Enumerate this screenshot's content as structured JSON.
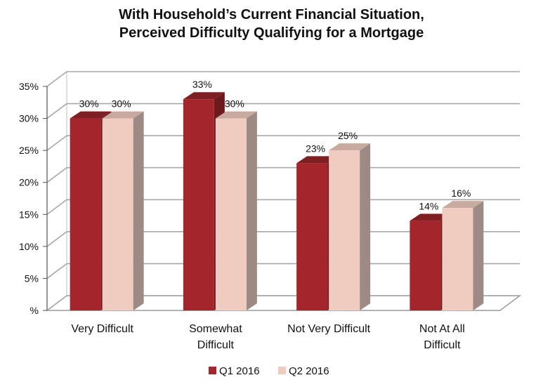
{
  "chart_data": {
    "type": "bar",
    "title_lines": [
      "With Household’s Current Financial Situation,",
      "Perceived Difficulty Qualifying for a Mortgage"
    ],
    "categories": [
      [
        "Very Difficult"
      ],
      [
        "Somewhat",
        "Difficult"
      ],
      [
        "Not Very Difficult"
      ],
      [
        "Not At All",
        "Difficult"
      ]
    ],
    "series": [
      {
        "name": "Q1 2016",
        "color": "#a4262c",
        "side": "#6e1a1d",
        "top": "#7e1f23",
        "values": [
          30,
          33,
          23,
          14
        ],
        "labels": [
          "30%",
          "33%",
          "23%",
          "14%"
        ]
      },
      {
        "name": "Q2 2016",
        "color": "#efcbc0",
        "side": "#9e8a85",
        "top": "#c8aaa1",
        "values": [
          30,
          30,
          25,
          16
        ],
        "labels": [
          "30%",
          "30%",
          "25%",
          "16%"
        ]
      }
    ],
    "ylim": [
      0,
      35
    ],
    "yticks": [
      0,
      5,
      10,
      15,
      20,
      25,
      30,
      35
    ],
    "ytick_labels": [
      "%",
      "5%",
      "10%",
      "15%",
      "20%",
      "25%",
      "30%",
      "35%"
    ],
    "grid": true,
    "legend": "bottom"
  }
}
